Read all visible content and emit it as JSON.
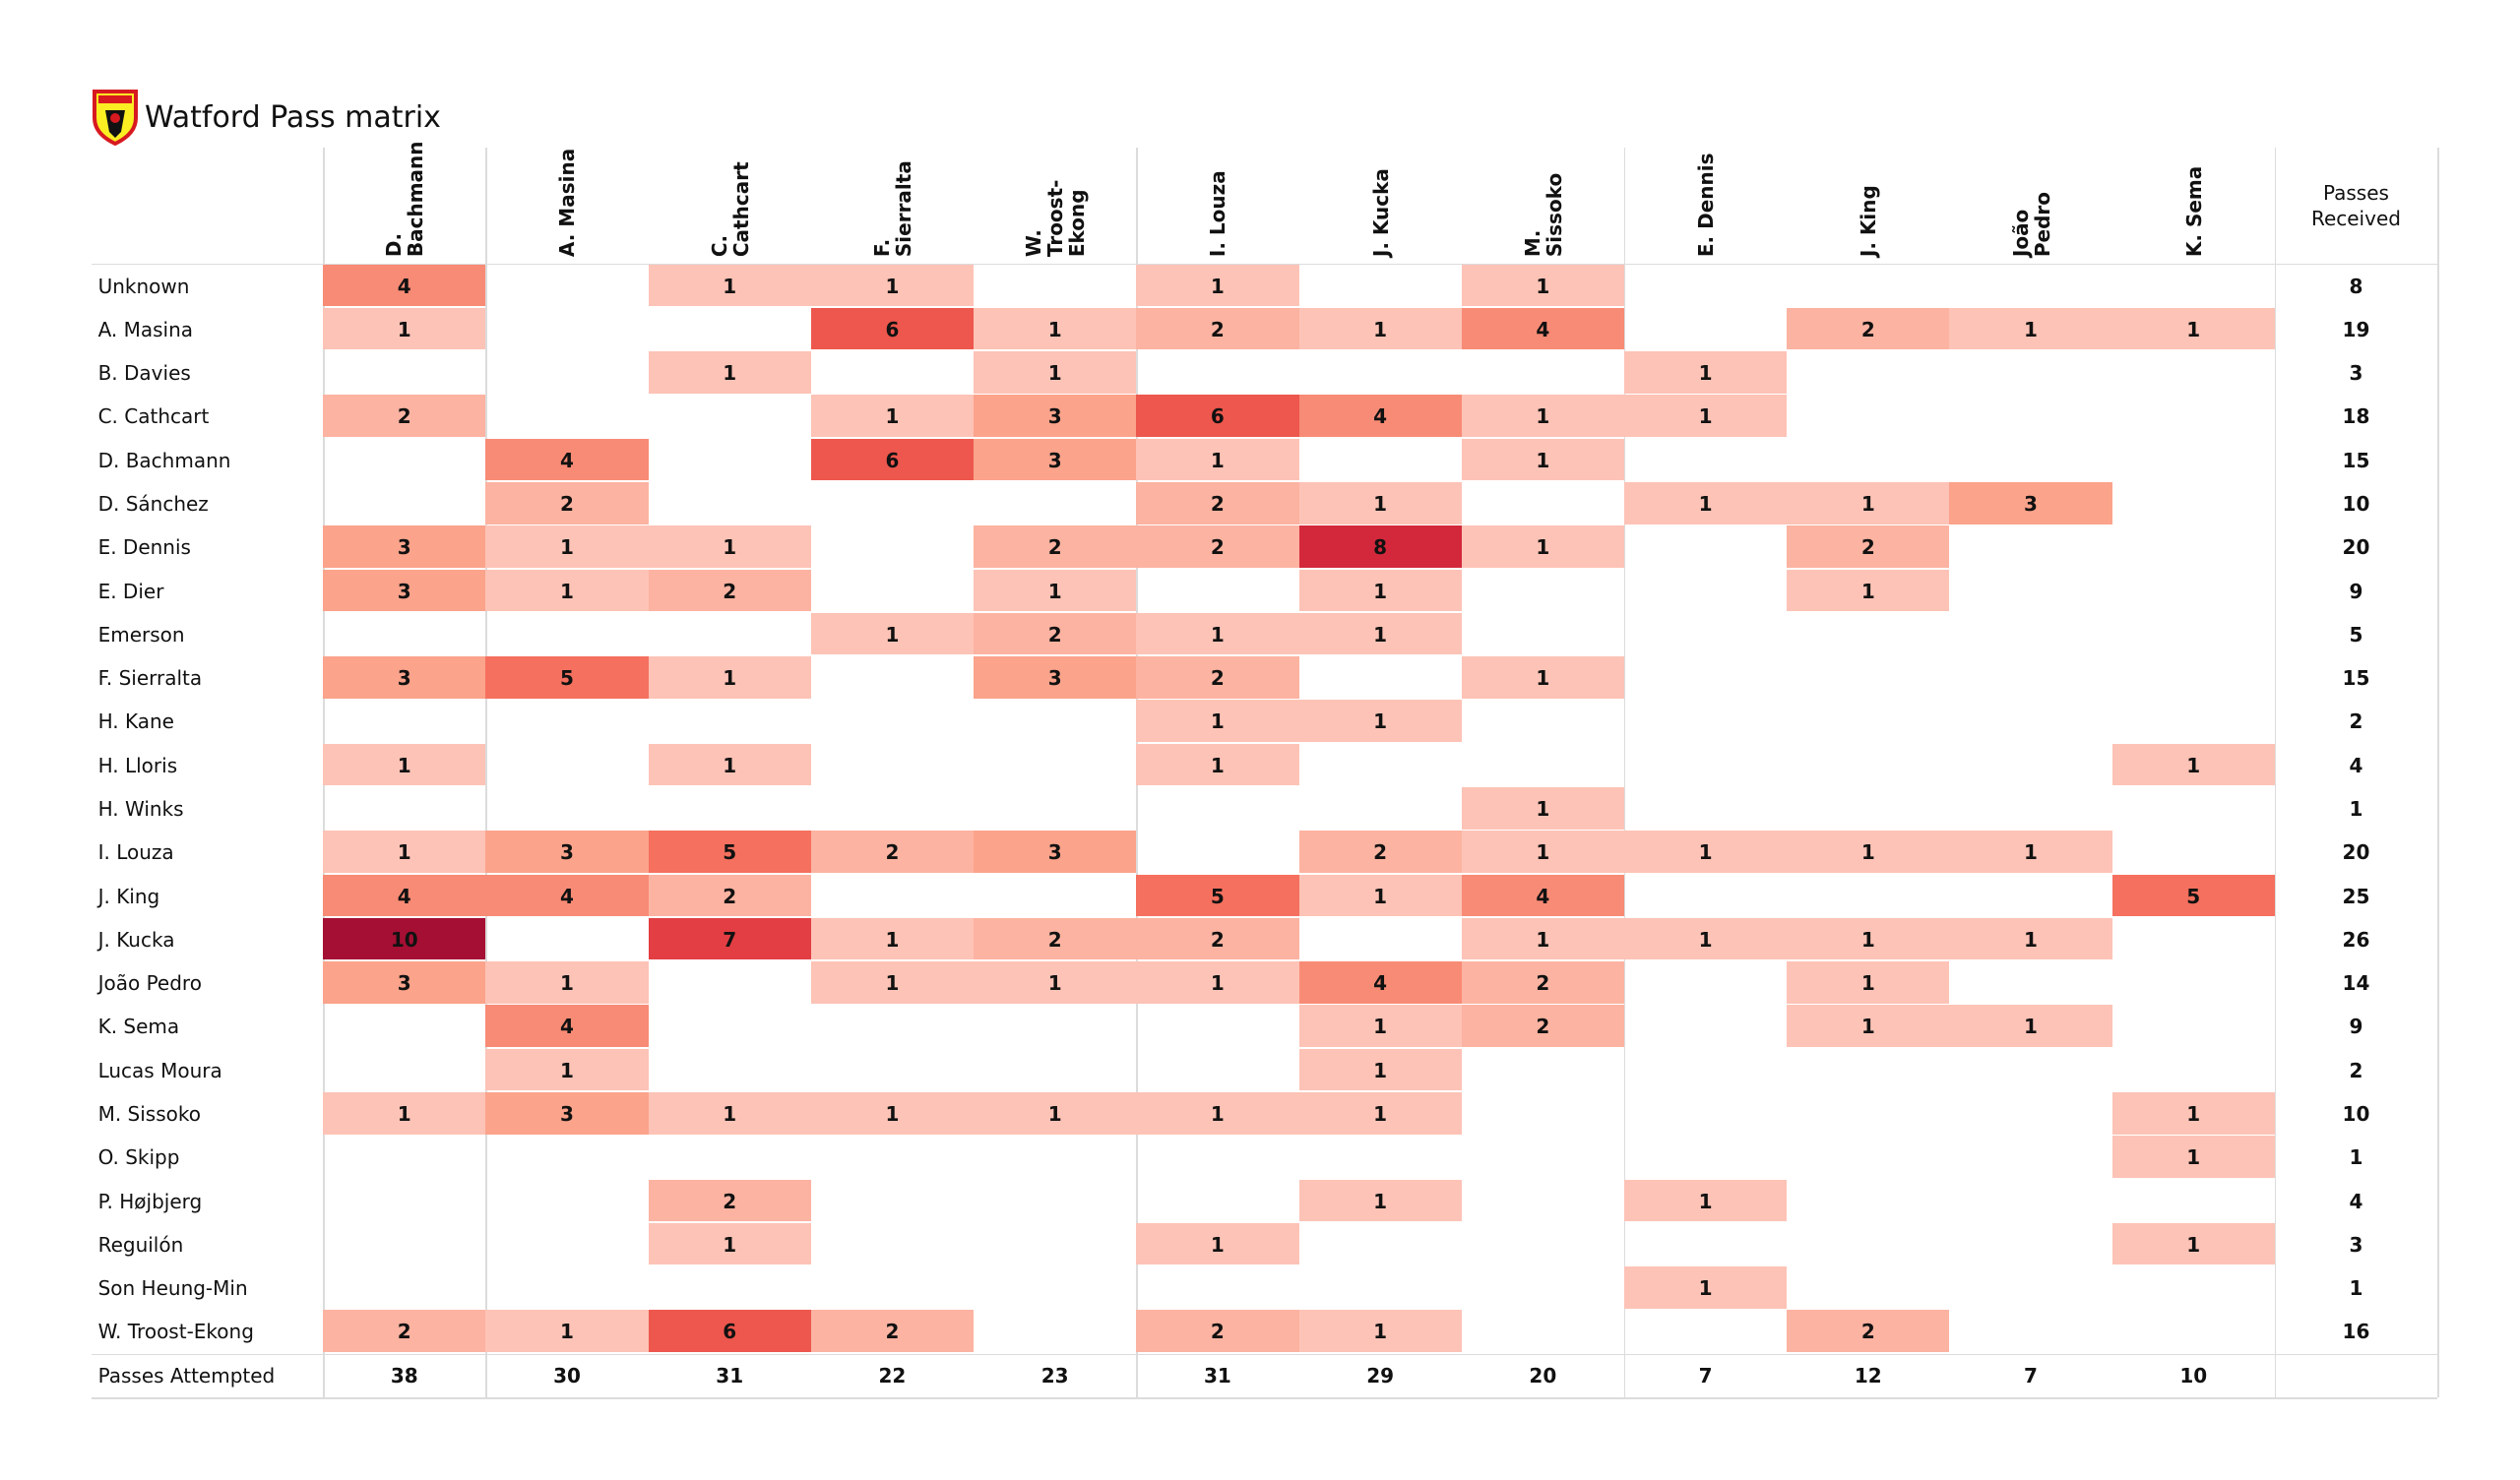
{
  "chart_data": {
    "type": "heatmap",
    "title": "Watford Pass matrix",
    "x_categories": [
      "D.\nBachmann",
      "A. Masina",
      "C.\nCathcart",
      "F.\nSierralta",
      "W. Troost-\nEkong",
      "I. Louza",
      "J. Kucka",
      "M.\nSissoko",
      "E. Dennis",
      "J. King",
      "João\nPedro",
      "K. Sema"
    ],
    "y_categories": [
      "Unknown",
      "A. Masina",
      "B. Davies",
      "C. Cathcart",
      "D. Bachmann",
      "D. Sánchez",
      "E. Dennis",
      "E. Dier",
      "Emerson",
      "F. Sierralta",
      "H. Kane",
      "H. Lloris",
      "H. Winks",
      "I. Louza",
      "J. King",
      "J. Kucka",
      "João Pedro",
      "K. Sema",
      "Lucas Moura",
      "M. Sissoko",
      "O. Skipp",
      "P. Højbjerg",
      "Reguilón",
      "Son Heung-Min",
      "W. Troost-Ekong"
    ],
    "values": [
      [
        4,
        null,
        1,
        1,
        null,
        1,
        null,
        1,
        null,
        null,
        null,
        null
      ],
      [
        1,
        null,
        null,
        6,
        1,
        2,
        1,
        4,
        null,
        2,
        1,
        1
      ],
      [
        null,
        null,
        1,
        null,
        1,
        null,
        null,
        null,
        1,
        null,
        null,
        null
      ],
      [
        2,
        null,
        null,
        1,
        3,
        6,
        4,
        1,
        1,
        null,
        null,
        null
      ],
      [
        null,
        4,
        null,
        6,
        3,
        1,
        null,
        1,
        null,
        null,
        null,
        null
      ],
      [
        null,
        2,
        null,
        null,
        null,
        2,
        1,
        null,
        1,
        1,
        3,
        null
      ],
      [
        3,
        1,
        1,
        null,
        2,
        2,
        8,
        1,
        null,
        2,
        null,
        null
      ],
      [
        3,
        1,
        2,
        null,
        1,
        null,
        1,
        null,
        null,
        1,
        null,
        null
      ],
      [
        null,
        null,
        null,
        1,
        2,
        1,
        1,
        null,
        null,
        null,
        null,
        null
      ],
      [
        3,
        5,
        1,
        null,
        3,
        2,
        null,
        1,
        null,
        null,
        null,
        null
      ],
      [
        null,
        null,
        null,
        null,
        null,
        1,
        1,
        null,
        null,
        null,
        null,
        null
      ],
      [
        1,
        null,
        1,
        null,
        null,
        1,
        null,
        null,
        null,
        null,
        null,
        1
      ],
      [
        null,
        null,
        null,
        null,
        null,
        null,
        null,
        1,
        null,
        null,
        null,
        null
      ],
      [
        1,
        3,
        5,
        2,
        3,
        null,
        2,
        1,
        1,
        1,
        1,
        null
      ],
      [
        4,
        4,
        2,
        null,
        null,
        5,
        1,
        4,
        null,
        null,
        null,
        5
      ],
      [
        10,
        null,
        7,
        1,
        2,
        2,
        null,
        1,
        1,
        1,
        1,
        null
      ],
      [
        3,
        1,
        null,
        1,
        1,
        1,
        4,
        2,
        null,
        1,
        null,
        null
      ],
      [
        null,
        4,
        null,
        null,
        null,
        null,
        1,
        2,
        null,
        1,
        1,
        null
      ],
      [
        null,
        1,
        null,
        null,
        null,
        null,
        1,
        null,
        null,
        null,
        null,
        null
      ],
      [
        1,
        3,
        1,
        1,
        1,
        1,
        1,
        null,
        null,
        null,
        null,
        1
      ],
      [
        null,
        null,
        null,
        null,
        null,
        null,
        null,
        null,
        null,
        null,
        null,
        1
      ],
      [
        null,
        null,
        2,
        null,
        null,
        null,
        1,
        null,
        1,
        null,
        null,
        null
      ],
      [
        null,
        null,
        1,
        null,
        null,
        1,
        null,
        null,
        null,
        null,
        null,
        1
      ],
      [
        null,
        null,
        null,
        null,
        null,
        null,
        null,
        null,
        1,
        null,
        null,
        null
      ],
      [
        2,
        1,
        6,
        2,
        null,
        2,
        1,
        null,
        null,
        2,
        null,
        null
      ]
    ],
    "colorscale": [
      "#fdc3b6",
      "#fb9f86",
      "#f36352",
      "#d92b3c",
      "#a50f33"
    ],
    "row_totals_label": "Passes\nReceived",
    "row_totals": [
      8,
      19,
      3,
      18,
      15,
      10,
      20,
      9,
      5,
      15,
      2,
      4,
      1,
      20,
      25,
      26,
      14,
      9,
      2,
      10,
      1,
      4,
      3,
      1,
      16
    ],
    "column_totals_label": "Passes Attempted",
    "column_totals": [
      38,
      30,
      31,
      22,
      23,
      31,
      29,
      20,
      7,
      12,
      7,
      10
    ]
  }
}
